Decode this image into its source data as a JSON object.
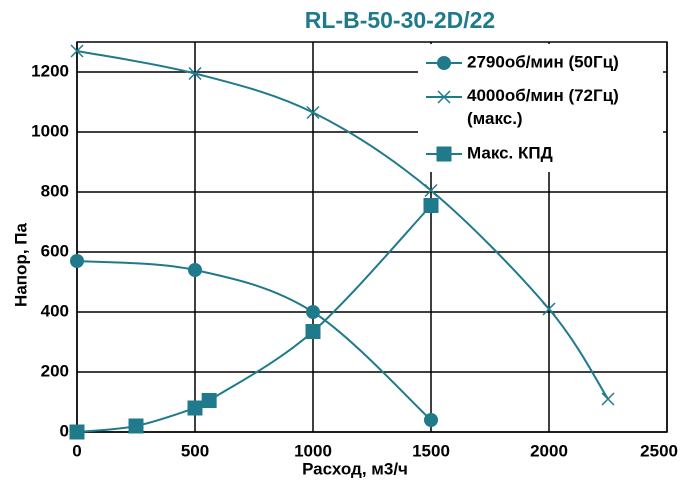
{
  "chart_data": {
    "type": "line",
    "title": "RL-B-50-30-2D/22",
    "xlabel": "Расход, м3/ч",
    "ylabel": "Напор, Па",
    "xlim": [
      0,
      2500
    ],
    "ylim": [
      0,
      1300
    ],
    "xticks": [
      0,
      500,
      1000,
      1500,
      2000,
      2500
    ],
    "yticks": [
      0,
      200,
      400,
      600,
      800,
      1000,
      1200
    ],
    "grid": true,
    "legend": "upper right",
    "series": [
      {
        "name": "2790об/мин (50Гц)",
        "color": "#1f7a8c",
        "marker": "circle",
        "x": [
          0,
          500,
          1000,
          1500
        ],
        "values": [
          570,
          540,
          400,
          40
        ]
      },
      {
        "name": "4000об/мин (72Гц) (макс.)",
        "color": "#1f7a8c",
        "marker": "x",
        "x": [
          0,
          500,
          1000,
          1500,
          2000,
          2250
        ],
        "values": [
          1270,
          1195,
          1065,
          805,
          410,
          110
        ]
      },
      {
        "name": "Макс. КПД",
        "color": "#1f7a8c",
        "marker": "square",
        "x": [
          0,
          250,
          500,
          560,
          1000,
          1500
        ],
        "values": [
          0,
          20,
          80,
          105,
          335,
          755
        ]
      }
    ]
  }
}
